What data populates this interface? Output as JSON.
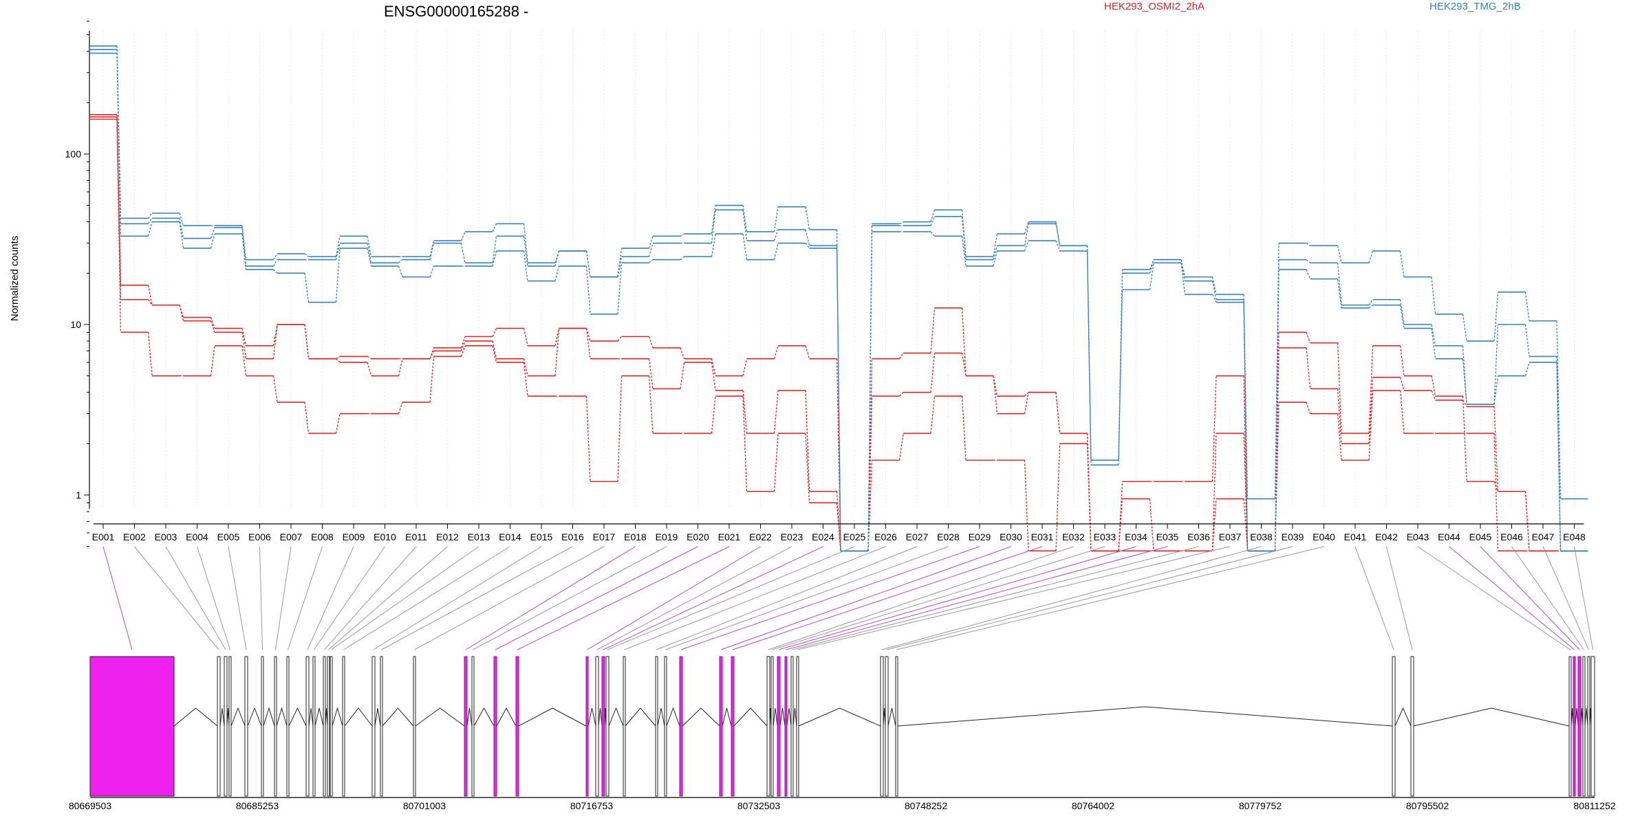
{
  "chart_data": {
    "type": "line",
    "title": "ENSG00000165288 -",
    "ylabel": "Normalized counts",
    "yscale": "log",
    "ylim": [
      0.45,
      600
    ],
    "yticks": [
      {
        "value": 1,
        "label": "1"
      },
      {
        "value": 10,
        "label": "10"
      },
      {
        "value": 100,
        "label": "100"
      }
    ],
    "categories": [
      "E001",
      "E002",
      "E003",
      "E004",
      "E005",
      "E006",
      "E007",
      "E008",
      "E009",
      "E010",
      "E011",
      "E012",
      "E013",
      "E014",
      "E015",
      "E016",
      "E017",
      "E018",
      "E019",
      "E020",
      "E021",
      "E022",
      "E023",
      "E024",
      "E025",
      "E026",
      "E027",
      "E028",
      "E029",
      "E030",
      "E031",
      "E032",
      "E033",
      "E034",
      "E035",
      "E036",
      "E037",
      "E038",
      "E039",
      "E040",
      "E041",
      "E042",
      "E043",
      "E044",
      "E045",
      "E046",
      "E047",
      "E048"
    ],
    "legend": [
      {
        "name": "HEK293_OSMI2_2hA",
        "color": "#d62728"
      },
      {
        "name": "HEK293_TMG_2hB",
        "color": "#3b7fb8"
      }
    ],
    "series": [
      {
        "group": "HEK293_OSMI2_2hA",
        "color": "#d62728",
        "values": [
          170,
          17,
          13,
          11,
          9.5,
          7.5,
          10,
          6.3,
          6.5,
          6.3,
          6.3,
          7.3,
          8.5,
          9.5,
          7.5,
          9.5,
          8,
          8.5,
          7.3,
          6.3,
          5,
          6.3,
          7.5,
          6.3,
          0.47,
          6.3,
          6.8,
          12.5,
          5,
          3.8,
          4,
          2.3,
          0.47,
          1.2,
          1.2,
          1.2,
          5,
          0.47,
          9,
          7.8,
          2.3,
          7.5,
          5,
          3.8,
          1.2,
          1.05,
          0.47,
          0.47
        ]
      },
      {
        "group": "HEK293_OSMI2_2hA",
        "color": "#d62728",
        "values": [
          165,
          14,
          13,
          10.5,
          9,
          6.3,
          10,
          6.3,
          6,
          5,
          6.3,
          7,
          8,
          6.3,
          5,
          9.5,
          6.3,
          6.3,
          4.2,
          6,
          4.1,
          2.3,
          4.1,
          1.05,
          0.47,
          3.8,
          4,
          6.8,
          5,
          3,
          4,
          2.3,
          0.47,
          0.95,
          0.47,
          0.47,
          2.3,
          0.47,
          7.3,
          4.2,
          2,
          4.9,
          4.1,
          3.6,
          3.3,
          1.05,
          0.47,
          0.47
        ]
      },
      {
        "group": "HEK293_OSMI2_2hA",
        "color": "#d62728",
        "values": [
          160,
          9,
          5,
          5,
          7.5,
          5,
          3.5,
          2.3,
          3,
          3,
          3.5,
          6.5,
          7.5,
          6,
          3.8,
          3.8,
          1.2,
          5,
          2.3,
          2.3,
          3.8,
          1.05,
          2.3,
          0.9,
          0.47,
          1.6,
          2.3,
          3.8,
          1.6,
          1.6,
          0.47,
          2,
          0.47,
          0.47,
          0.47,
          0.47,
          0.95,
          0.47,
          3.5,
          3,
          1.6,
          4.1,
          2.3,
          2.3,
          2.3,
          0.47,
          0.47,
          0.47
        ]
      },
      {
        "group": "HEK293_TMG_2hB",
        "color": "#3b7fb8",
        "values": [
          430,
          42,
          45,
          38,
          38,
          24,
          26,
          25,
          33,
          25,
          25,
          31,
          35,
          39,
          23,
          27,
          19,
          28,
          33,
          34,
          50,
          35,
          49,
          36,
          0.47,
          39,
          40,
          47,
          25,
          34,
          40,
          29,
          1.6,
          21,
          24,
          19,
          15,
          0.95,
          30,
          29,
          23,
          27,
          19,
          11.5,
          8,
          15.5,
          10.5,
          0.95
        ]
      },
      {
        "group": "HEK293_TMG_2hB",
        "color": "#3b7fb8",
        "values": [
          410,
          39,
          42,
          32,
          37,
          22,
          24,
          24,
          30,
          23,
          24,
          30,
          23,
          33,
          22,
          27,
          19,
          25,
          30,
          30,
          47,
          31,
          36,
          29,
          0.47,
          38,
          38,
          43,
          24,
          29,
          39,
          29,
          1.6,
          20,
          24,
          18,
          14,
          0.47,
          24,
          23,
          13,
          14,
          10,
          7.5,
          3.4,
          10,
          6.5,
          0.47
        ]
      },
      {
        "group": "HEK293_TMG_2hB",
        "color": "#3b7fb8",
        "values": [
          390,
          33,
          40,
          28,
          34,
          21,
          20,
          13.5,
          28,
          22,
          19,
          22,
          22,
          27,
          18,
          22,
          11.5,
          23,
          24,
          25,
          34,
          24,
          30,
          28,
          0.47,
          35,
          35,
          33,
          22,
          27,
          31,
          27,
          1.5,
          16,
          23,
          15,
          13.5,
          0.47,
          21,
          18.5,
          12.5,
          13,
          9.5,
          6.3,
          3.4,
          5,
          6,
          0.47
        ]
      }
    ],
    "gene_model": {
      "coordinate_ticks": [
        "80669503",
        "80685253",
        "80701003",
        "80716753",
        "80732503",
        "80748252",
        "80764002",
        "80779752",
        "80795502",
        "80811252"
      ],
      "highlight_color": "#ee22ee"
    }
  }
}
